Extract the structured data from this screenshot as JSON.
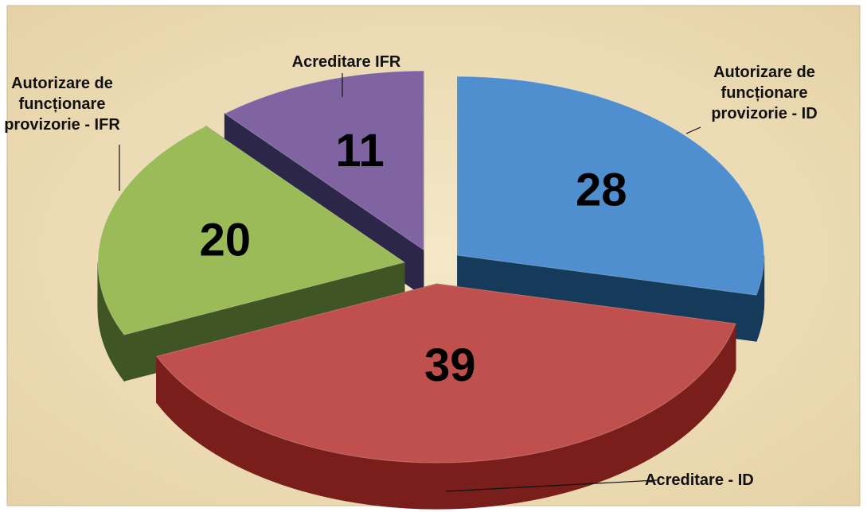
{
  "chart_data": {
    "type": "pie3d",
    "categories": [
      "Autorizare de funcționare provizorie - ID",
      "Acreditare - ID",
      "Autorizare de funcționare provizorie - IFR",
      "Acreditare IFR"
    ],
    "values": [
      28,
      39,
      20,
      11
    ],
    "colors": [
      "#4f8fd0",
      "#c0504d",
      "#9bbb59",
      "#8064a2"
    ],
    "side_colors": [
      "#163a5a",
      "#7a1e1c",
      "#3f5524",
      "#2c2648"
    ]
  }
}
